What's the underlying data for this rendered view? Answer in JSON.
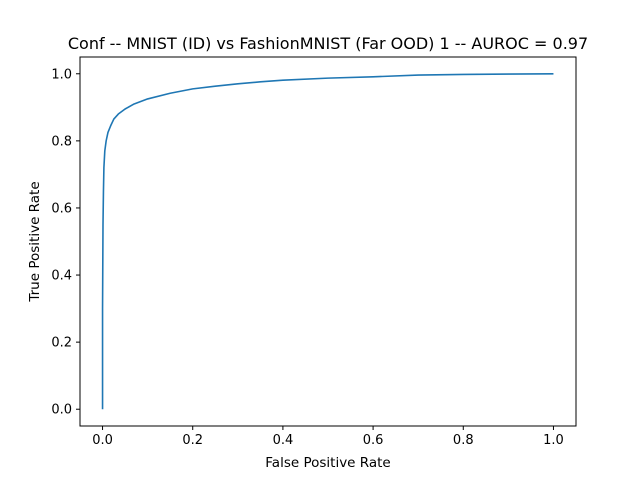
{
  "chart_data": {
    "type": "line",
    "title": "Conf -- MNIST (ID) vs FashionMNIST (Far OOD) 1 -- AUROC = 0.97",
    "xlabel": "False Positive Rate",
    "ylabel": "True Positive Rate",
    "xlim": [
      -0.05,
      1.05
    ],
    "ylim": [
      -0.05,
      1.05
    ],
    "xticks": [
      0.0,
      0.2,
      0.4,
      0.6,
      0.8,
      1.0
    ],
    "xtick_labels": [
      "0.0",
      "0.2",
      "0.4",
      "0.6",
      "0.8",
      "1.0"
    ],
    "yticks": [
      0.0,
      0.2,
      0.4,
      0.6,
      0.8,
      1.0
    ],
    "ytick_labels": [
      "0.0",
      "0.2",
      "0.4",
      "0.6",
      "0.8",
      "1.0"
    ],
    "grid": false,
    "legend": "none",
    "series": [
      {
        "color": "#1f77b4",
        "x": [
          0.0,
          0.0,
          0.001,
          0.002,
          0.003,
          0.005,
          0.008,
          0.012,
          0.018,
          0.025,
          0.035,
          0.05,
          0.07,
          0.1,
          0.15,
          0.2,
          0.25,
          0.3,
          0.35,
          0.4,
          0.5,
          0.6,
          0.7,
          0.8,
          0.9,
          1.0
        ],
        "y": [
          0.0,
          0.3,
          0.55,
          0.65,
          0.72,
          0.77,
          0.8,
          0.825,
          0.845,
          0.865,
          0.88,
          0.895,
          0.91,
          0.925,
          0.942,
          0.955,
          0.963,
          0.97,
          0.976,
          0.981,
          0.987,
          0.991,
          0.996,
          0.998,
          0.999,
          1.0
        ]
      }
    ]
  }
}
